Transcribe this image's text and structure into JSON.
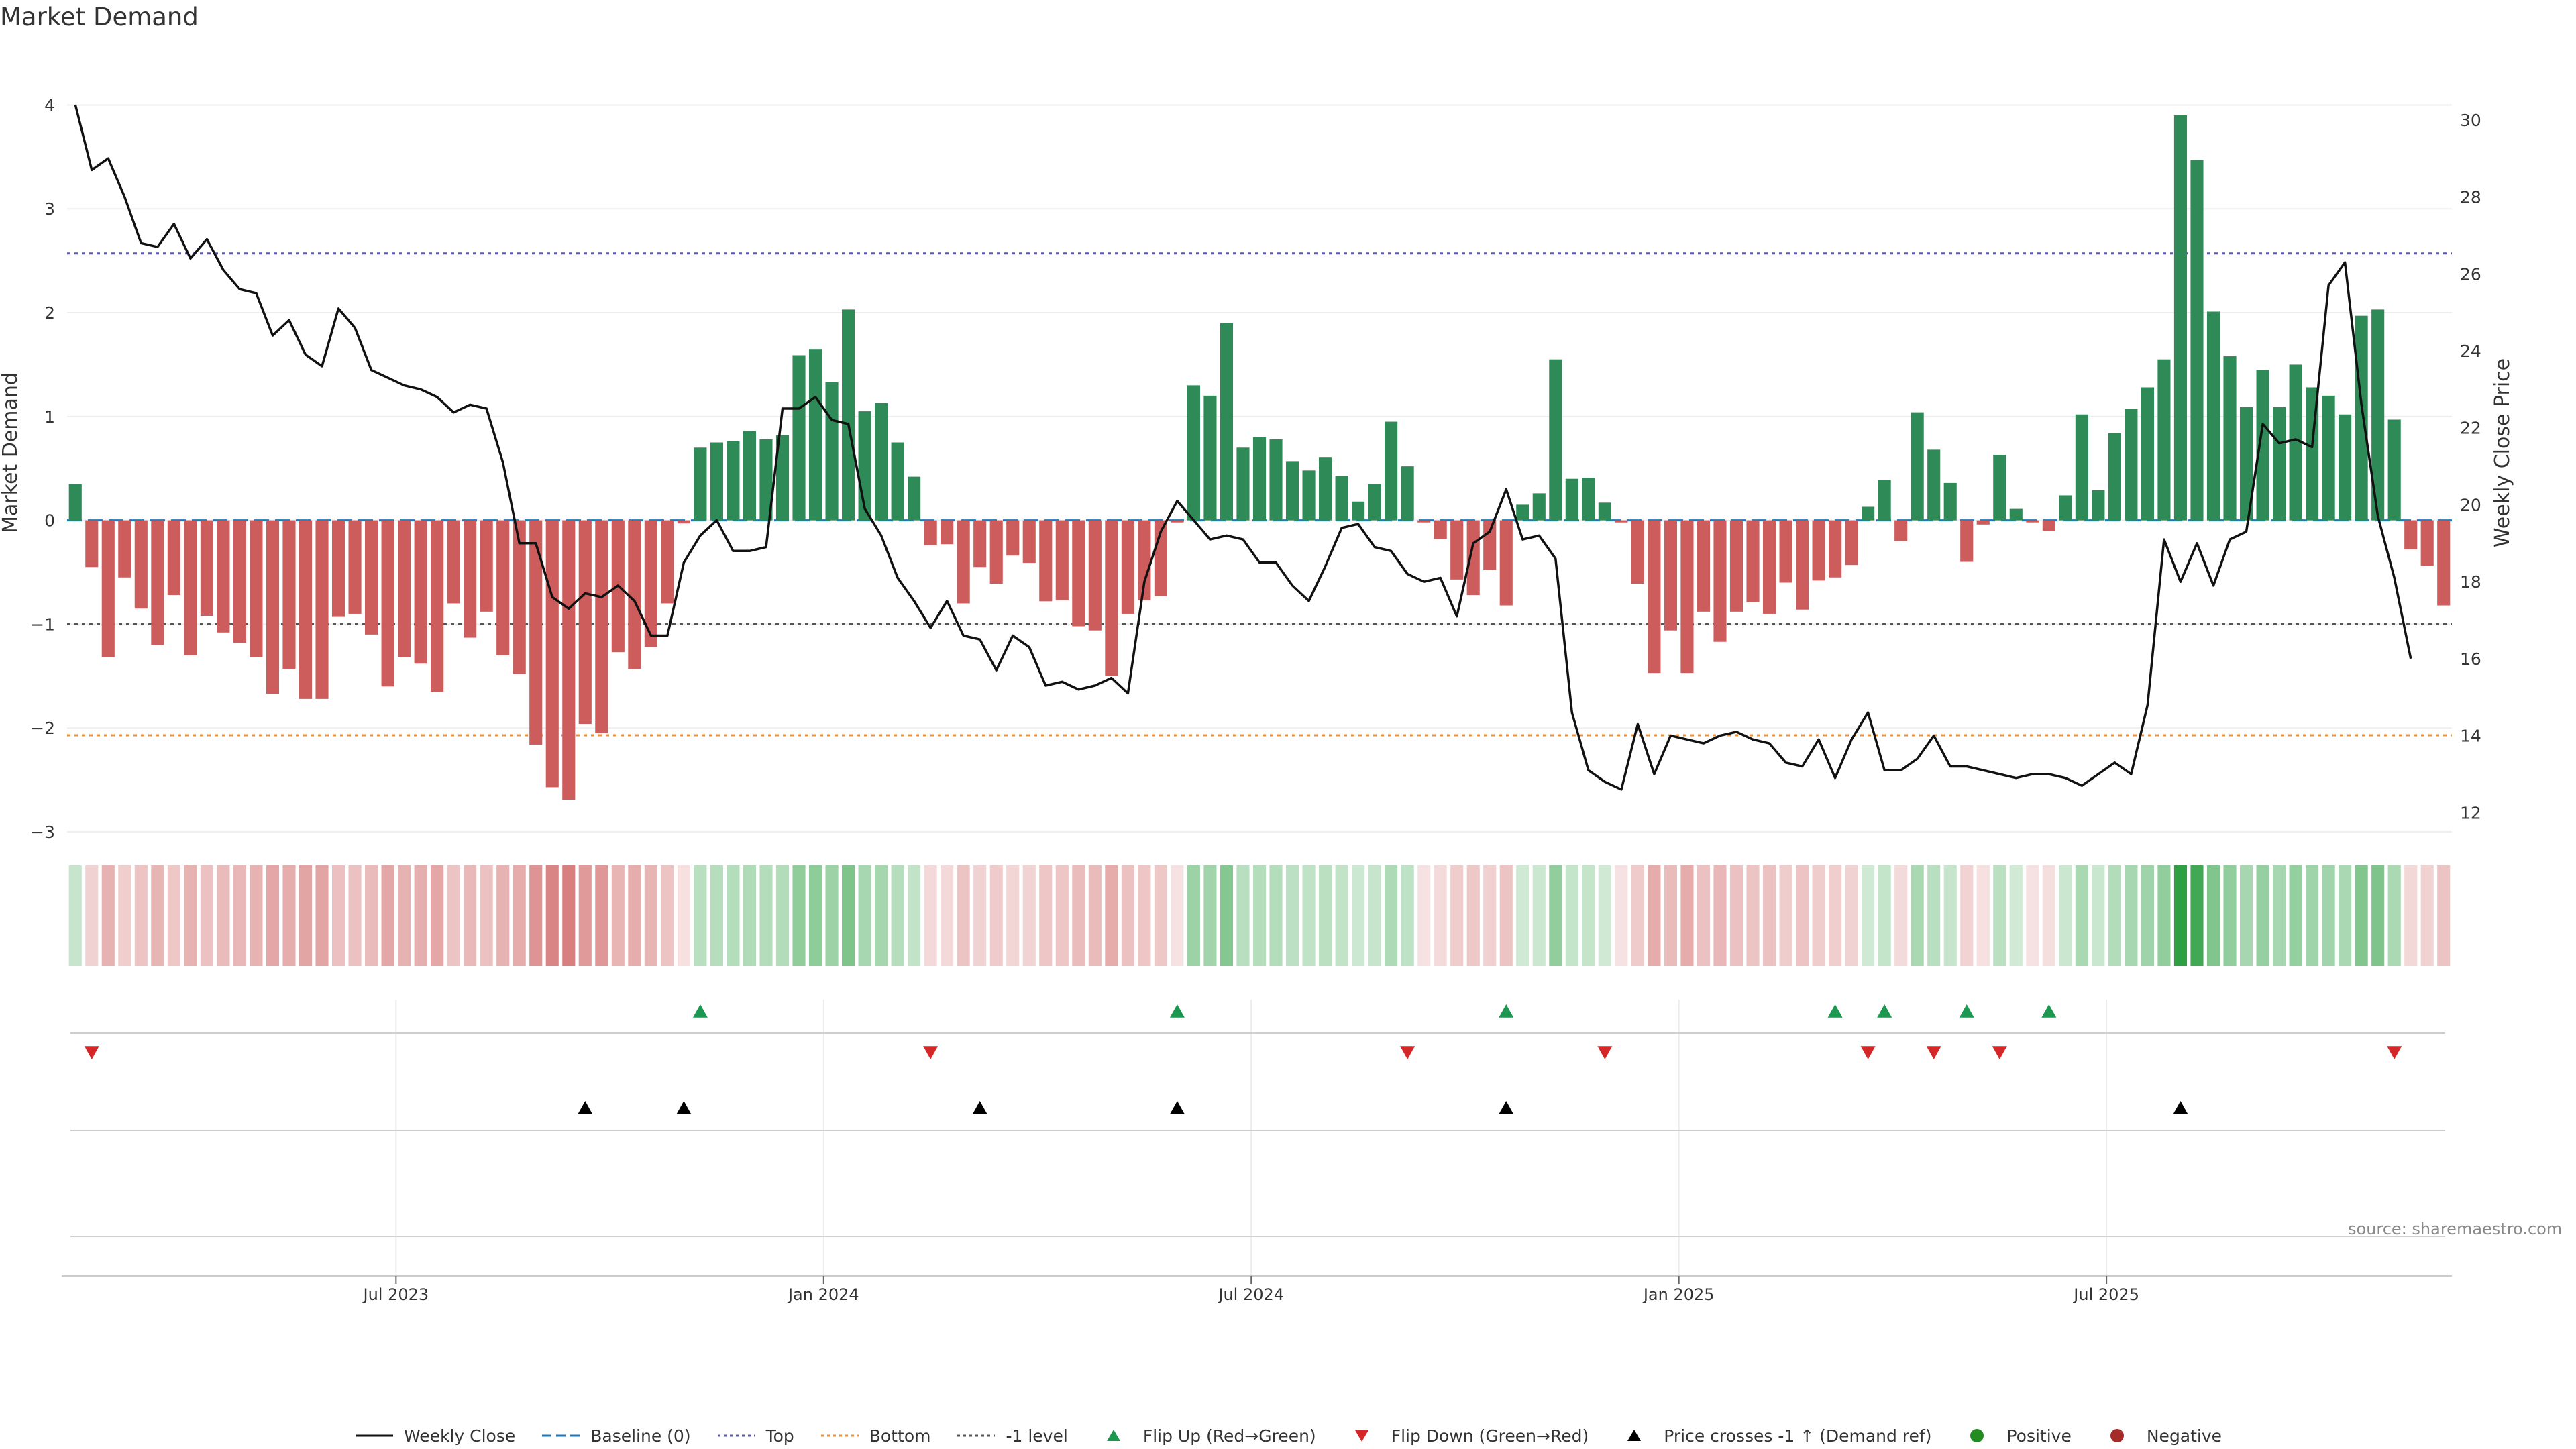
{
  "title": "Market Demand",
  "source": "source: sharemaestro.com",
  "legend": [
    {
      "label": "Weekly Close",
      "key": "close"
    },
    {
      "label": "Baseline (0)",
      "key": "baseline"
    },
    {
      "label": "Top",
      "key": "top"
    },
    {
      "label": "Bottom",
      "key": "bottom"
    },
    {
      "label": "-1 level",
      "key": "neg1"
    },
    {
      "label": "Flip Up (Red→Green)",
      "key": "flipup"
    },
    {
      "label": "Flip Down (Green→Red)",
      "key": "flipdown"
    },
    {
      "label": "Price crosses -1 ↑ (Demand ref)",
      "key": "cross"
    },
    {
      "label": "Positive",
      "key": "pos"
    },
    {
      "label": "Negative",
      "key": "neg"
    }
  ],
  "chart_data": {
    "type": "bar",
    "title": "Market Demand",
    "ylabel": "Market Demand",
    "y2label": "Weekly Close Price",
    "ylim": [
      -3,
      4.3
    ],
    "y2lim": [
      11.5,
      31.2
    ],
    "yticks": [
      4,
      3,
      2,
      1,
      0,
      -1,
      -2,
      -3
    ],
    "ytick_labels": [
      "4",
      "3",
      "2",
      "1",
      "0",
      "−1",
      "−2",
      "−3"
    ],
    "y2ticks": [
      30,
      28,
      26,
      24,
      22,
      20,
      18,
      16,
      14,
      12
    ],
    "xtick_labels": [
      "Jul 2023",
      "Jan 2024",
      "Jul 2024",
      "Jan 2025",
      "Jul 2025"
    ],
    "xtick_weeks": [
      20,
      46,
      72,
      98,
      124
    ],
    "levels": {
      "top": 2.57,
      "bottom": -2.07,
      "minus_one": -1.0,
      "baseline": 0
    },
    "colors": {
      "positive": "#2e8b57",
      "negative": "#cd5c5c",
      "close": "#111111",
      "top": "#5a5aa8",
      "bottom": "#e8903a",
      "neg1": "#555555",
      "baseline": "#1f77b4",
      "flip_up": "#1a9850",
      "flip_down": "#d62728",
      "cross": "#000000"
    },
    "demand": [
      0.35,
      -0.45,
      -1.32,
      -0.55,
      -0.85,
      -1.2,
      -0.72,
      -1.3,
      -0.92,
      -1.08,
      -1.18,
      -1.32,
      -1.67,
      -1.43,
      -1.72,
      -1.72,
      -0.93,
      -0.9,
      -1.1,
      -1.6,
      -1.32,
      -1.38,
      -1.65,
      -0.8,
      -1.13,
      -0.88,
      -1.3,
      -1.48,
      -2.16,
      -2.57,
      -2.69,
      -1.96,
      -2.05,
      -1.27,
      -1.43,
      -1.22,
      -0.8,
      -0.03,
      0.7,
      0.75,
      0.76,
      0.86,
      0.78,
      0.82,
      1.59,
      1.65,
      1.33,
      2.03,
      1.05,
      1.13,
      0.75,
      0.42,
      -0.24,
      -0.23,
      -0.8,
      -0.45,
      -0.61,
      -0.34,
      -0.41,
      -0.78,
      -0.77,
      -1.02,
      -1.06,
      -1.5,
      -0.9,
      -0.77,
      -0.73,
      -0.02,
      1.3,
      1.2,
      1.9,
      0.7,
      0.8,
      0.78,
      0.57,
      0.48,
      0.61,
      0.43,
      0.18,
      0.35,
      0.95,
      0.52,
      -0.02,
      -0.18,
      -0.57,
      -0.72,
      -0.48,
      -0.82,
      0.15,
      0.26,
      1.55,
      0.4,
      0.41,
      0.17,
      -0.02,
      -0.61,
      -1.47,
      -1.06,
      -1.47,
      -0.88,
      -1.17,
      -0.88,
      -0.79,
      -0.9,
      -0.6,
      -0.86,
      -0.58,
      -0.55,
      -0.43,
      0.13,
      0.39,
      -0.2,
      1.04,
      0.68,
      0.36,
      -0.4,
      -0.04,
      0.63,
      0.11,
      -0.02,
      -0.1,
      0.24,
      1.02,
      0.29,
      0.84,
      1.07,
      1.28,
      1.55,
      3.9,
      3.47,
      2.01,
      1.58,
      1.09,
      1.45,
      1.09,
      1.5,
      1.28,
      1.2,
      1.02,
      1.97,
      2.03,
      0.97,
      -0.28,
      -0.44,
      -0.82
    ],
    "close": [
      30.4,
      28.7,
      29.0,
      28.0,
      26.8,
      26.7,
      27.3,
      26.4,
      26.9,
      26.1,
      25.6,
      25.5,
      24.4,
      24.8,
      23.9,
      23.6,
      25.1,
      24.6,
      23.5,
      23.3,
      23.1,
      23.0,
      22.8,
      22.4,
      22.6,
      22.5,
      21.1,
      19.0,
      19.0,
      17.6,
      17.3,
      17.7,
      17.6,
      17.9,
      17.5,
      16.6,
      16.6,
      18.5,
      19.2,
      19.6,
      18.8,
      18.8,
      18.9,
      22.5,
      22.5,
      22.8,
      22.2,
      22.1,
      19.9,
      19.2,
      18.1,
      17.5,
      16.8,
      17.5,
      16.6,
      16.5,
      15.7,
      16.6,
      16.3,
      15.3,
      15.4,
      15.2,
      15.3,
      15.5,
      15.1,
      18.0,
      19.3,
      20.1,
      19.6,
      19.1,
      19.2,
      19.1,
      18.5,
      18.5,
      17.9,
      17.5,
      18.4,
      19.4,
      19.5,
      18.9,
      18.8,
      18.2,
      18.0,
      18.1,
      17.1,
      19.0,
      19.3,
      20.4,
      19.1,
      19.2,
      18.6,
      14.6,
      13.1,
      12.8,
      12.6,
      14.3,
      13.0,
      14.0,
      13.9,
      13.8,
      14.0,
      14.1,
      13.9,
      13.8,
      13.3,
      13.2,
      13.9,
      12.9,
      13.9,
      14.6,
      13.1,
      13.1,
      13.4,
      14.0,
      13.2,
      13.2,
      13.1,
      13.0,
      12.9,
      13.0,
      13.0,
      12.9,
      12.7,
      13.0,
      13.3,
      13.0,
      14.8,
      19.1,
      18.0,
      19.0,
      17.9,
      19.1,
      19.3,
      22.1,
      21.6,
      21.7,
      21.5,
      25.7,
      26.3,
      22.6,
      19.7,
      18.1,
      16.0
    ],
    "flip_up_weeks": [
      38,
      67,
      87,
      107,
      110,
      115,
      120
    ],
    "flip_down_weeks": [
      1,
      52,
      81,
      93,
      109,
      113,
      117,
      141
    ],
    "cross_weeks": [
      31,
      37,
      55,
      67,
      87,
      128
    ]
  }
}
